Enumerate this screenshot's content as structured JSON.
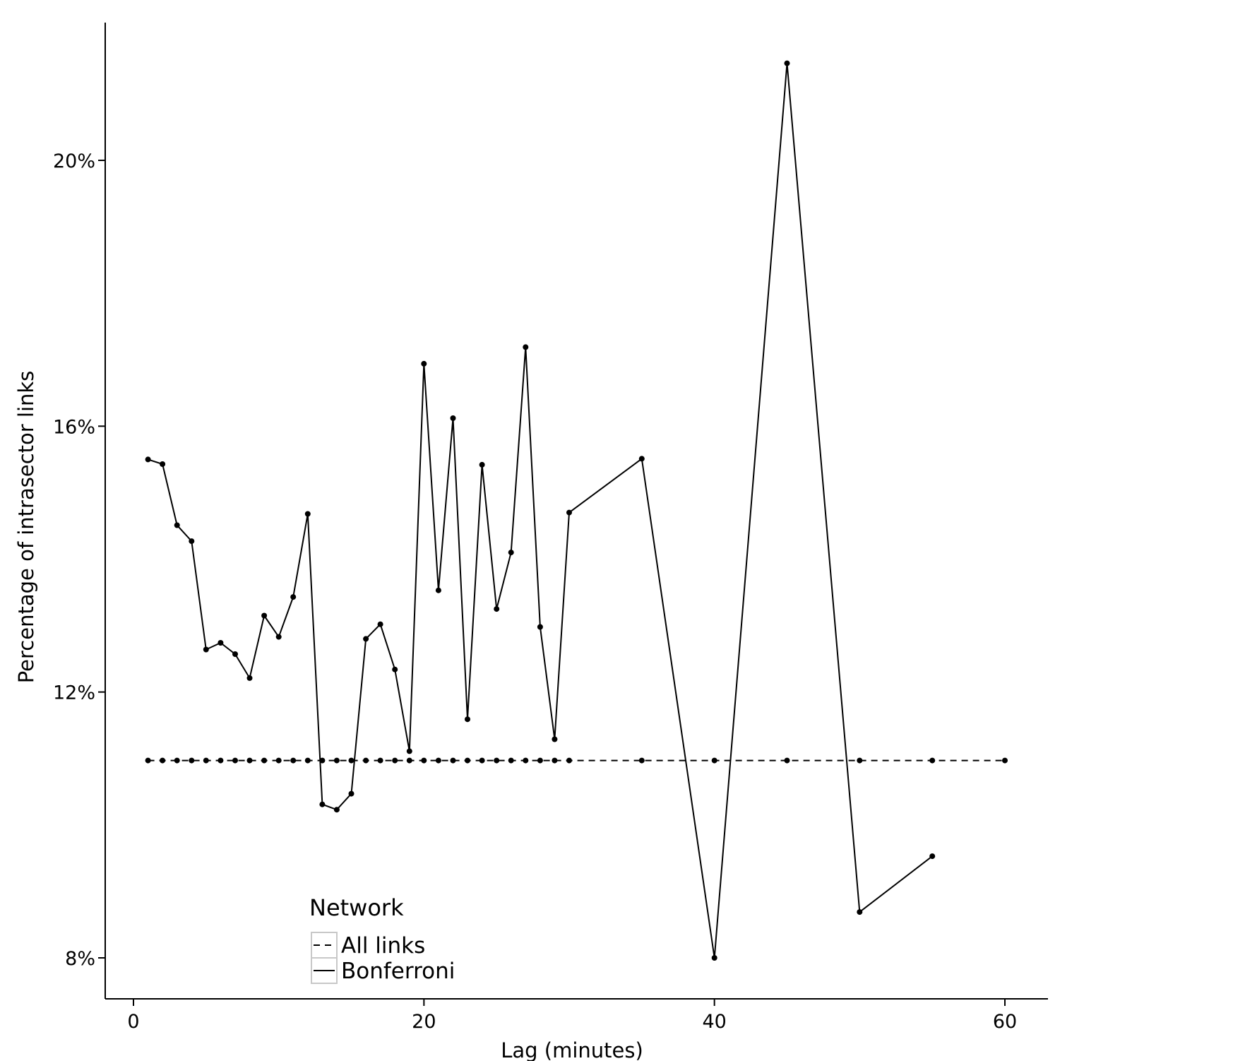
{
  "chart_data": {
    "type": "line",
    "title": "",
    "xlabel": "Lag (minutes)",
    "ylabel": "Percentage of intrasector links",
    "xlim": [
      -2,
      63
    ],
    "ylim": [
      7.32,
      22.1
    ],
    "x_ticks": [
      {
        "value": 0,
        "label": "0"
      },
      {
        "value": 20,
        "label": "20"
      },
      {
        "value": 40,
        "label": "40"
      },
      {
        "value": 60,
        "label": "60"
      }
    ],
    "y_ticks": [
      {
        "value": 8,
        "label": "8%"
      },
      {
        "value": 12,
        "label": "12%"
      },
      {
        "value": 16,
        "label": "16%"
      },
      {
        "value": 20,
        "label": "20%"
      }
    ],
    "grid": false,
    "legend": {
      "title": "Network",
      "position": "bottom-left",
      "entries": [
        {
          "label": "All links",
          "linestyle": "dashed"
        },
        {
          "label": "Bonferroni",
          "linestyle": "solid"
        }
      ]
    },
    "series": [
      {
        "name": "All links",
        "linestyle": "dashed",
        "color": "#000000",
        "x": [
          1,
          2,
          3,
          4,
          5,
          6,
          7,
          8,
          9,
          10,
          11,
          12,
          13,
          14,
          15,
          16,
          17,
          18,
          19,
          20,
          21,
          22,
          23,
          24,
          25,
          26,
          27,
          28,
          29,
          30,
          35,
          40,
          45,
          50,
          55,
          60
        ],
        "y": [
          10.97,
          10.97,
          10.97,
          10.97,
          10.97,
          10.97,
          10.97,
          10.97,
          10.97,
          10.97,
          10.97,
          10.97,
          10.97,
          10.97,
          10.97,
          10.97,
          10.97,
          10.97,
          10.97,
          10.97,
          10.97,
          10.97,
          10.97,
          10.97,
          10.97,
          10.97,
          10.97,
          10.97,
          10.97,
          10.97,
          10.97,
          10.97,
          10.97,
          10.97,
          10.97,
          10.97
        ]
      },
      {
        "name": "Bonferroni",
        "linestyle": "solid",
        "color": "#000000",
        "x": [
          1,
          2,
          3,
          4,
          5,
          6,
          7,
          8,
          9,
          10,
          11,
          12,
          13,
          14,
          15,
          16,
          17,
          18,
          19,
          20,
          21,
          22,
          23,
          24,
          25,
          26,
          27,
          28,
          29,
          30,
          35,
          40,
          45,
          50,
          55
        ],
        "y": [
          15.5,
          15.43,
          14.51,
          14.27,
          12.64,
          12.74,
          12.57,
          12.21,
          13.15,
          12.83,
          13.43,
          14.68,
          10.31,
          10.23,
          10.47,
          12.8,
          13.02,
          12.34,
          11.11,
          16.94,
          13.53,
          16.12,
          11.59,
          15.42,
          13.25,
          14.1,
          17.19,
          12.98,
          11.29,
          14.7,
          15.51,
          8.0,
          21.46,
          8.69,
          9.53
        ]
      }
    ]
  }
}
